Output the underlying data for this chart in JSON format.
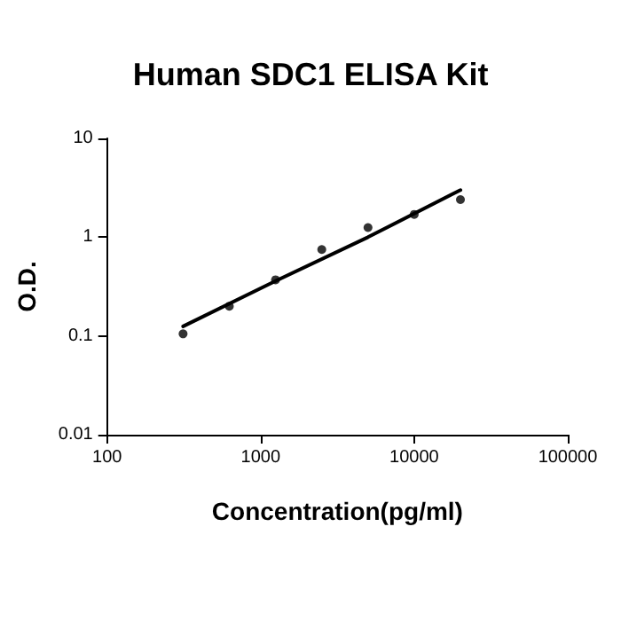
{
  "chart_data": {
    "type": "scatter",
    "title": "Human SDC1 ELISA Kit",
    "xlabel": "Concentration(pg/ml)",
    "ylabel": "O.D.",
    "log": "xy",
    "grid": false,
    "xlim": [
      100,
      100000
    ],
    "xticks": [
      100,
      1000,
      10000,
      100000
    ],
    "ylim": [
      0.01,
      10
    ],
    "yticks": [
      0.01,
      0.1,
      1,
      10
    ],
    "series": [
      {
        "color": "#000000",
        "marker": "circle",
        "x": [
          312.5,
          625,
          1250,
          2500,
          5000,
          10000,
          20000
        ],
        "values": [
          0.105,
          0.2,
          0.37,
          0.75,
          1.25,
          1.7,
          2.4
        ]
      },
      {
        "type": "line",
        "color": "#000000",
        "marker": "none",
        "line_style": "solid",
        "x": [
          312.5,
          1250,
          5000,
          20000
        ],
        "values": [
          0.125,
          0.36,
          1.0,
          3.0
        ]
      }
    ]
  }
}
